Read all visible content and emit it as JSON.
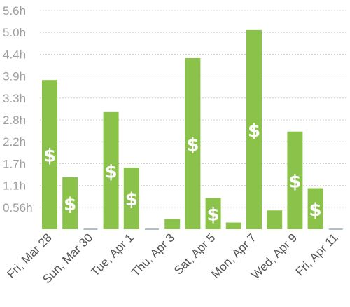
{
  "chart_data": {
    "type": "bar",
    "x_tick_labels": [
      "Fri, Mar 28",
      "Sun, Mar 30",
      "Tue, Apr 1",
      "Thu, Apr 3",
      "Sat, Apr 5",
      "Mon, Apr 7",
      "Wed, Apr 9",
      "Fri, Apr 11"
    ],
    "y_tick_labels": [
      "0.56h",
      "1.1h",
      "1.7h",
      "2.2h",
      "2.8h",
      "3.3h",
      "3.9h",
      "4.4h",
      "5.0h",
      "5.6h"
    ],
    "ylim": [
      0,
      5.6
    ],
    "unit": "h",
    "grid": true,
    "bars": [
      {
        "date": "Mar 28",
        "value": 3.82,
        "paid": true
      },
      {
        "date": "Mar 29",
        "value": 1.33,
        "paid": true
      },
      {
        "date": "Mar 30",
        "value": 0,
        "paid": false
      },
      {
        "date": "Mar 31",
        "value": 3.0,
        "paid": true
      },
      {
        "date": "Apr 1",
        "value": 1.58,
        "paid": true
      },
      {
        "date": "Apr 2",
        "value": 0,
        "paid": false
      },
      {
        "date": "Apr 3",
        "value": 0.26,
        "paid": false
      },
      {
        "date": "Apr 4",
        "value": 4.38,
        "paid": true
      },
      {
        "date": "Apr 5",
        "value": 0.8,
        "paid": true
      },
      {
        "date": "Apr 6",
        "value": 0.17,
        "paid": false
      },
      {
        "date": "Apr 7",
        "value": 5.1,
        "paid": true
      },
      {
        "date": "Apr 8",
        "value": 0.48,
        "paid": false
      },
      {
        "date": "Apr 9",
        "value": 2.5,
        "paid": true
      },
      {
        "date": "Apr 10",
        "value": 1.05,
        "paid": true
      },
      {
        "date": "Apr 11",
        "value": 0,
        "paid": false
      }
    ],
    "paid_marker": "$",
    "colors": {
      "bar": "#8bc34a",
      "empty": "#b0bec5",
      "grid": "#cfcfcf",
      "marker": "#ffffff"
    }
  }
}
